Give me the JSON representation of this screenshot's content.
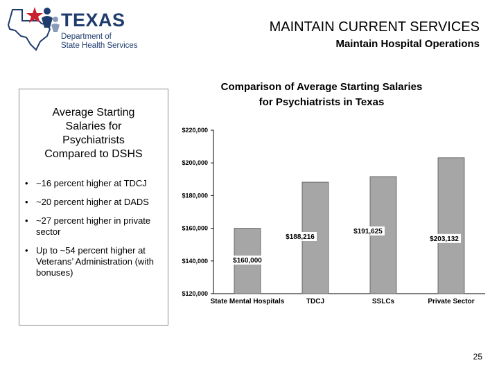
{
  "header": {
    "title": "MAINTAIN CURRENT SERVICES",
    "subtitle": "Maintain Hospital Operations"
  },
  "logo": {
    "title": "TEXAS",
    "line1": "Department of",
    "line2": "State Health Services"
  },
  "panel": {
    "title_lines": [
      "Average Starting",
      "Salaries for",
      "Psychiatrists",
      "Compared to DSHS"
    ],
    "bullets": [
      "~16 percent higher at TDCJ",
      "~20 percent higher at DADS",
      "~27 percent higher in private sector",
      "Up to ~54 percent higher at Veterans’ Administration (with bonuses)"
    ]
  },
  "colors": {
    "bar": "#a6a6a6",
    "accent": "#c8202f",
    "brand_blue": "#1f3c6e"
  },
  "chart_data": {
    "type": "bar",
    "title_lines": [
      "Comparison of Average Starting Salaries",
      "for Psychiatrists in Texas"
    ],
    "categories": [
      "State Mental Hospitals",
      "TDCJ",
      "SSLCs",
      "Private Sector"
    ],
    "values": [
      160000,
      188216,
      191625,
      203132
    ],
    "data_labels": [
      "$160,000",
      "$188,216",
      "$191,625",
      "$203,132"
    ],
    "ylim": [
      120000,
      220000
    ],
    "yticks": [
      120000,
      140000,
      160000,
      180000,
      200000,
      220000
    ],
    "ytick_labels": [
      "$120,000",
      "$140,000",
      "$160,000",
      "$180,000",
      "$200,000",
      "$220,000"
    ],
    "grid": false,
    "legend": "none"
  },
  "page_number": "25"
}
